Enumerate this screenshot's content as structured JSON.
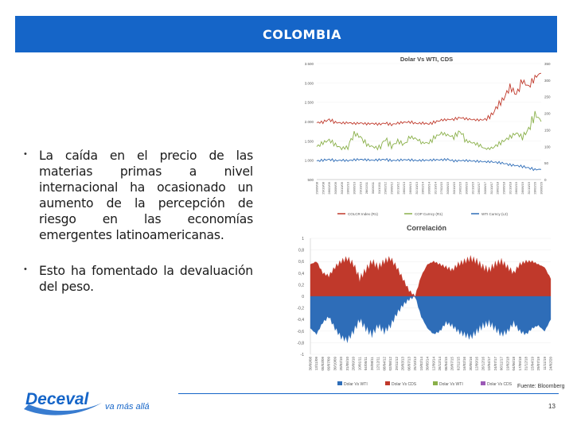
{
  "banner": {
    "title": "COLOMBIA"
  },
  "bullets": [
    {
      "text": "La caída en el precio de las materias primas a nivel internacional ha ocasionado un aumento de la percepción de riesgo en las economías emergentes latinoamericanas."
    },
    {
      "text": "Esto ha fomentado la devaluación del peso."
    }
  ],
  "footer": {
    "source": "Fuente: Bloomberg",
    "page_number": "13",
    "logo_text": "Deceval",
    "logo_tagline": "va más allá"
  },
  "colors": {
    "banner": "#1565c8",
    "dolar": "#2e6db8",
    "wti": "#8ab04a",
    "cds": "#c0392b"
  },
  "chart_data": [
    {
      "type": "line",
      "title": "Dolar Vs WTI, CDS",
      "y_left_ticks": [
        "3.500",
        "3.000",
        "2.500",
        "2.000",
        "1.500",
        "1.000",
        "500"
      ],
      "y_right_ticks": [
        "350",
        "300",
        "250",
        "200",
        "150",
        "100",
        "50",
        "0"
      ],
      "x_ticks": [
        "29/06/08",
        "29/10/08",
        "28/02/09",
        "30/06/09",
        "30/10/09",
        "28/02/10",
        "30/06/10",
        "29/10/10",
        "28/02/11",
        "30/06/11",
        "31/10/11",
        "29/02/12",
        "29/06/12",
        "31/10/12",
        "28/02/13",
        "28/06/13",
        "31/10/13",
        "28/02/14",
        "30/06/14",
        "31/10/14",
        "27/02/15",
        "30/06/15",
        "30/10/15",
        "29/02/16",
        "30/06/16",
        "31/10/16",
        "28/02/17",
        "30/06/17",
        "31/10/17",
        "28/02/18",
        "29/06/18",
        "31/10/18",
        "28/02/19",
        "28/06/19",
        "31/10/19",
        "28/02/20",
        "30/06/20"
      ],
      "legend": [
        "COLCR Index (R1)",
        "COP Curncy (R1)",
        "WTI Curncy (L2)"
      ],
      "legend_placement": "bottom",
      "series": [
        {
          "name": "COLCR Index (R1)",
          "color": "#c0392b",
          "values": [
            1970,
            1990,
            2050,
            1980,
            1960,
            1970,
            1950,
            1960,
            1940,
            1950,
            1930,
            1960,
            1920,
            1960,
            1980,
            1990,
            1950,
            1960,
            1940,
            1990,
            2040,
            2050,
            2060,
            2100,
            2070,
            2050,
            2040,
            2050,
            2150,
            2400,
            2600,
            2900,
            2700,
            3050,
            2900,
            3150,
            3250
          ]
        },
        {
          "name": "COP Curncy (R1)",
          "color": "#8ab04a",
          "values": [
            1350,
            1450,
            1520,
            1400,
            1300,
            1350,
            1700,
            1600,
            1400,
            1350,
            1300,
            1550,
            1350,
            1500,
            1400,
            1600,
            1550,
            1450,
            1450,
            1600,
            1700,
            1650,
            1600,
            1750,
            1500,
            1450,
            1400,
            1300,
            1300,
            1400,
            1500,
            1600,
            1700,
            1600,
            1800,
            2200,
            2000
          ]
        },
        {
          "name": "WTI Curncy (L2)",
          "color": "#2e6db8",
          "values": [
            980,
            1000,
            1020,
            990,
            1000,
            990,
            1010,
            1020,
            1010,
            1000,
            1010,
            1020,
            990,
            1000,
            1010,
            1010,
            990,
            1000,
            1000,
            1010,
            1010,
            1020,
            980,
            990,
            990,
            980,
            970,
            960,
            960,
            940,
            920,
            880,
            860,
            840,
            800,
            760,
            760
          ]
        }
      ]
    },
    {
      "type": "area",
      "title": "Correlación",
      "y_ticks": [
        "1",
        "0,8",
        "0,6",
        "0,4",
        "0,2",
        "0",
        "-0,2",
        "-0,4",
        "-0,6",
        "-0,8",
        "-1"
      ],
      "ylim": [
        -1,
        1
      ],
      "x_ticks": [
        "30/09/08",
        "13/11/09",
        "05/03/09",
        "09/07/09",
        "30/10/09",
        "20/02/10",
        "31/05/10",
        "20/09/10",
        "10/01/11",
        "04/05/11",
        "26/08/11",
        "12/12/11",
        "08/04/12",
        "02/08/12",
        "29/11/12",
        "20/03/13",
        "06/07/13",
        "25/10/13",
        "10/02/14",
        "30/05/14",
        "12/09/14",
        "26/12/14",
        "06/04/15",
        "20/07/15",
        "02/11/15",
        "16/02/16",
        "30/05/16",
        "12/09/16",
        "26/12/16",
        "10/04/17",
        "24/07/17",
        "06/11/17",
        "19/02/18",
        "04/06/18",
        "17/09/18",
        "31/12/18",
        "15/04/19",
        "29/07/19",
        "11/11/19",
        "24/02/20"
      ],
      "legend": [
        "Dolar Vs WTI",
        "Dolar Vs CDS",
        "Dolar Vs WTI",
        "Dolar Vs CDS"
      ],
      "legend_placement": "bottom",
      "series": [
        {
          "name": "Dolar Vs CDS",
          "color": "#c0392b",
          "values": [
            0.55,
            0.6,
            0.4,
            0.35,
            0.5,
            0.6,
            0.65,
            0.55,
            0.3,
            0.45,
            0.6,
            0.5,
            0.6,
            0.65,
            0.5,
            0.3,
            0.1,
            0.0,
            0.35,
            0.55,
            0.6,
            0.55,
            0.5,
            0.45,
            0.55,
            0.6,
            0.65,
            0.6,
            0.5,
            0.45,
            0.55,
            0.6,
            0.5,
            0.4,
            0.55,
            0.6,
            0.6,
            0.55,
            0.5,
            0.3
          ]
        },
        {
          "name": "Dolar Vs WTI",
          "color": "#2e6db8",
          "values": [
            -0.55,
            -0.65,
            -0.45,
            -0.35,
            -0.55,
            -0.7,
            -0.75,
            -0.6,
            -0.4,
            -0.55,
            -0.65,
            -0.5,
            -0.6,
            -0.5,
            -0.3,
            -0.15,
            -0.05,
            0.0,
            -0.35,
            -0.55,
            -0.65,
            -0.6,
            -0.45,
            -0.5,
            -0.6,
            -0.65,
            -0.7,
            -0.6,
            -0.5,
            -0.45,
            -0.55,
            -0.65,
            -0.6,
            -0.45,
            -0.6,
            -0.65,
            -0.55,
            -0.5,
            -0.6,
            -0.4
          ]
        }
      ]
    }
  ]
}
